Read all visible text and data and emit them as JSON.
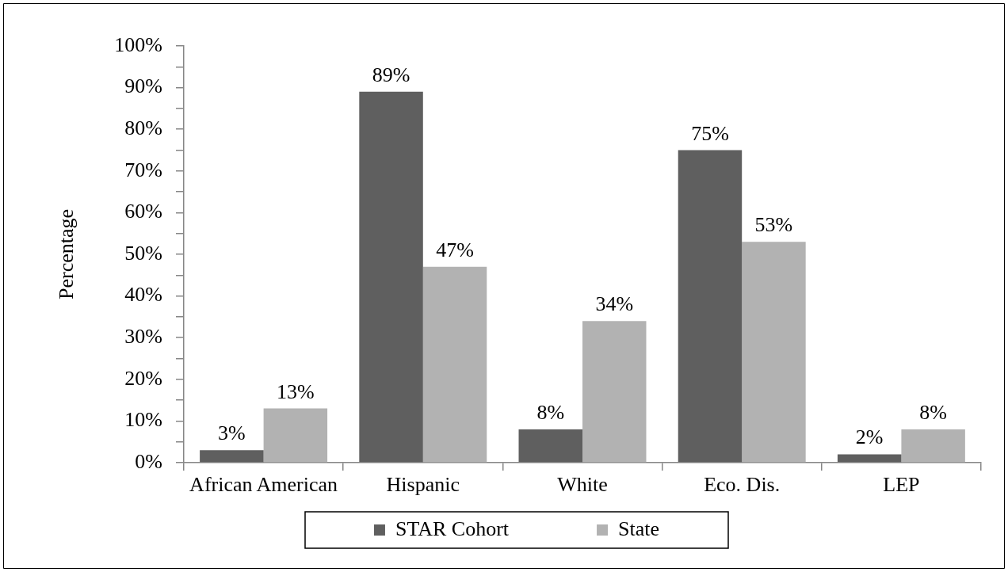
{
  "chart_data": {
    "type": "bar",
    "ylabel": "Percentage",
    "categories": [
      "African American",
      "Hispanic",
      "White",
      "Eco. Dis.",
      "LEP"
    ],
    "series": [
      {
        "name": "STAR Cohort",
        "color": "#5f5f5f",
        "values": [
          3,
          89,
          8,
          75,
          2
        ],
        "value_labels": [
          "3%",
          "89%",
          "8%",
          "75%",
          "2%"
        ]
      },
      {
        "name": "State",
        "color": "#b2b2b2",
        "values": [
          13,
          47,
          34,
          53,
          8
        ],
        "value_labels": [
          "13%",
          "47%",
          "34%",
          "53%",
          "8%"
        ]
      }
    ],
    "ylim": [
      0,
      100
    ],
    "yticks": [
      {
        "value": 0,
        "label": "0%"
      },
      {
        "value": 5,
        "label": null
      },
      {
        "value": 10,
        "label": "10%"
      },
      {
        "value": 15,
        "label": null
      },
      {
        "value": 20,
        "label": "20%"
      },
      {
        "value": 25,
        "label": null
      },
      {
        "value": 30,
        "label": "30%"
      },
      {
        "value": 35,
        "label": null
      },
      {
        "value": 40,
        "label": "40%"
      },
      {
        "value": 45,
        "label": null
      },
      {
        "value": 50,
        "label": "50%"
      },
      {
        "value": 55,
        "label": null
      },
      {
        "value": 60,
        "label": "60%"
      },
      {
        "value": 65,
        "label": null
      },
      {
        "value": 70,
        "label": "70%"
      },
      {
        "value": 75,
        "label": null
      },
      {
        "value": 80,
        "label": "80%"
      },
      {
        "value": 85,
        "label": null
      },
      {
        "value": 90,
        "label": "90%"
      },
      {
        "value": 95,
        "label": null
      },
      {
        "value": 100,
        "label": "100%"
      }
    ],
    "legend": "bottom"
  }
}
